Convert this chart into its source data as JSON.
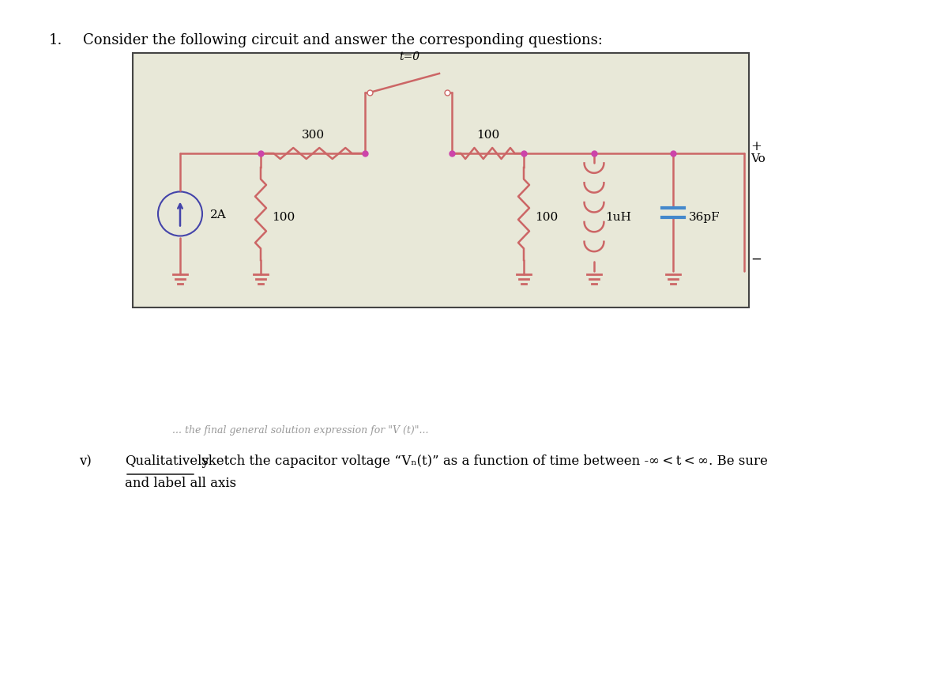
{
  "title_number": "1.",
  "title_text": "Consider the following circuit and answer the corresponding questions:",
  "background_color": "#ffffff",
  "circuit_bg": "#e8e8d8",
  "wire_color": "#cc6666",
  "resistor_color": "#cc6666",
  "node_color": "#cc44aa",
  "current_source_color": "#4444aa",
  "ground_color": "#cc6666",
  "switch_color": "#cc6666",
  "inductor_color": "#cc6666",
  "capacitor_color": "#4488cc",
  "label_color": "#000000",
  "t0_label": "t=0",
  "r1_label": "300",
  "r2_label": "100",
  "r3_label": "100",
  "r4_label": "100",
  "l_label": "1uH",
  "c_label": "36pF",
  "cs_label": "2A",
  "vo_label": "Vo",
  "question_v_label": "v)",
  "question_v_text2": "and label all axis",
  "figsize": [
    12.0,
    8.79
  ],
  "dpi": 100
}
